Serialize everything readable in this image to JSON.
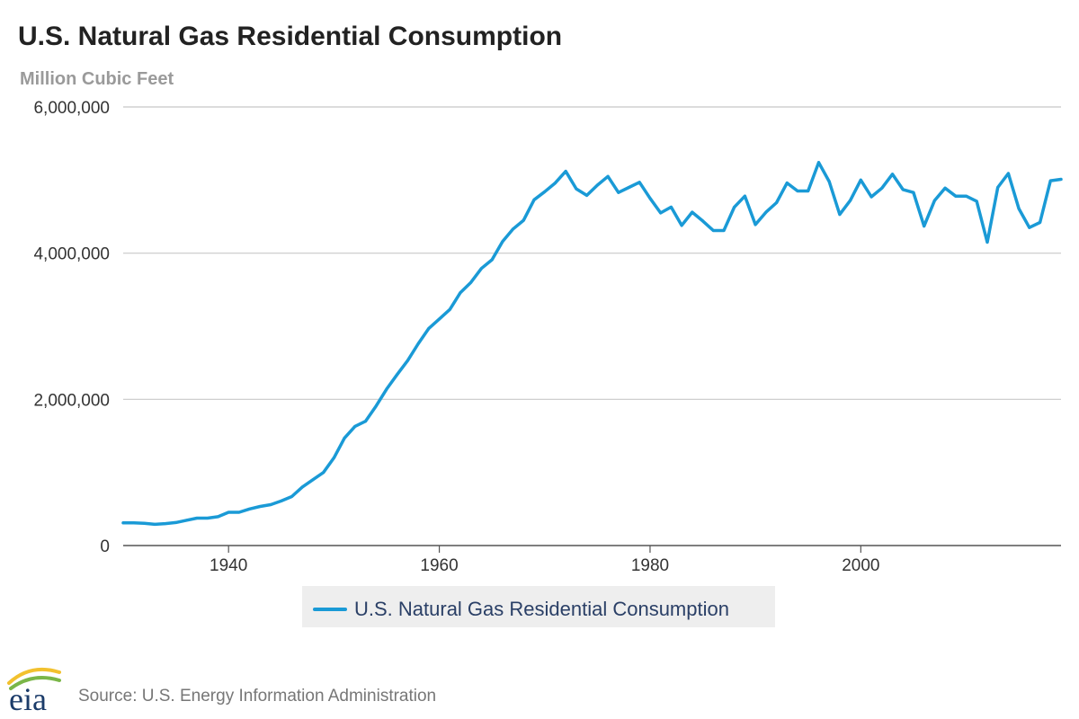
{
  "source": "Source: U.S. Energy Information Administration",
  "logo_text": "eia",
  "colors": {
    "line": "#1a9ad6",
    "grid": "#c8c8c8",
    "axis": "#555555",
    "legend_bg": "#eeeeee",
    "logo_blue": "#1c3c6a",
    "logo_green": "#7ab648",
    "logo_yellow": "#f2c12e"
  },
  "chart_data": {
    "type": "line",
    "title": "U.S. Natural Gas Residential Consumption",
    "ylabel": "Million Cubic Feet",
    "xlabel": "",
    "xlim": [
      1930,
      2019
    ],
    "ylim": [
      0,
      6000000
    ],
    "x_ticks": [
      1940,
      1960,
      1980,
      2000
    ],
    "y_ticks": [
      0,
      2000000,
      4000000,
      6000000
    ],
    "y_tick_labels": [
      "0",
      "2,000,000",
      "4,000,000",
      "6,000,000"
    ],
    "grid": true,
    "legend_position": "bottom-center",
    "x": [
      1930,
      1931,
      1932,
      1933,
      1934,
      1935,
      1936,
      1937,
      1938,
      1939,
      1940,
      1941,
      1942,
      1943,
      1944,
      1945,
      1946,
      1947,
      1948,
      1949,
      1950,
      1951,
      1952,
      1953,
      1954,
      1955,
      1956,
      1957,
      1958,
      1959,
      1960,
      1961,
      1962,
      1963,
      1964,
      1965,
      1966,
      1967,
      1968,
      1969,
      1970,
      1971,
      1972,
      1973,
      1974,
      1975,
      1976,
      1977,
      1978,
      1979,
      1980,
      1981,
      1982,
      1983,
      1984,
      1985,
      1986,
      1987,
      1988,
      1989,
      1990,
      1991,
      1992,
      1993,
      1994,
      1995,
      1996,
      1997,
      1998,
      1999,
      2000,
      2001,
      2002,
      2003,
      2004,
      2005,
      2006,
      2007,
      2008,
      2009,
      2010,
      2011,
      2012,
      2013,
      2014,
      2015,
      2016,
      2017,
      2018,
      2019
    ],
    "series": [
      {
        "name": "U.S. Natural Gas Residential Consumption",
        "values": [
          310000,
          310000,
          305000,
          290000,
          300000,
          315000,
          345000,
          375000,
          375000,
          395000,
          455000,
          455000,
          500000,
          535000,
          560000,
          610000,
          670000,
          800000,
          900000,
          1000000,
          1200000,
          1470000,
          1630000,
          1700000,
          1910000,
          2140000,
          2340000,
          2530000,
          2760000,
          2970000,
          3100000,
          3230000,
          3460000,
          3600000,
          3790000,
          3910000,
          4160000,
          4330000,
          4450000,
          4730000,
          4840000,
          4960000,
          5120000,
          4880000,
          4790000,
          4930000,
          5050000,
          4830000,
          4900000,
          4970000,
          4750000,
          4550000,
          4630000,
          4380000,
          4560000,
          4440000,
          4310000,
          4310000,
          4630000,
          4780000,
          4390000,
          4560000,
          4690000,
          4960000,
          4850000,
          4850000,
          5240000,
          4980000,
          4530000,
          4720000,
          5000000,
          4770000,
          4890000,
          5080000,
          4870000,
          4830000,
          4370000,
          4720000,
          4890000,
          4780000,
          4780000,
          4710000,
          4150000,
          4900000,
          5090000,
          4610000,
          4350000,
          4420000,
          4990000,
          5010000
        ]
      }
    ]
  }
}
